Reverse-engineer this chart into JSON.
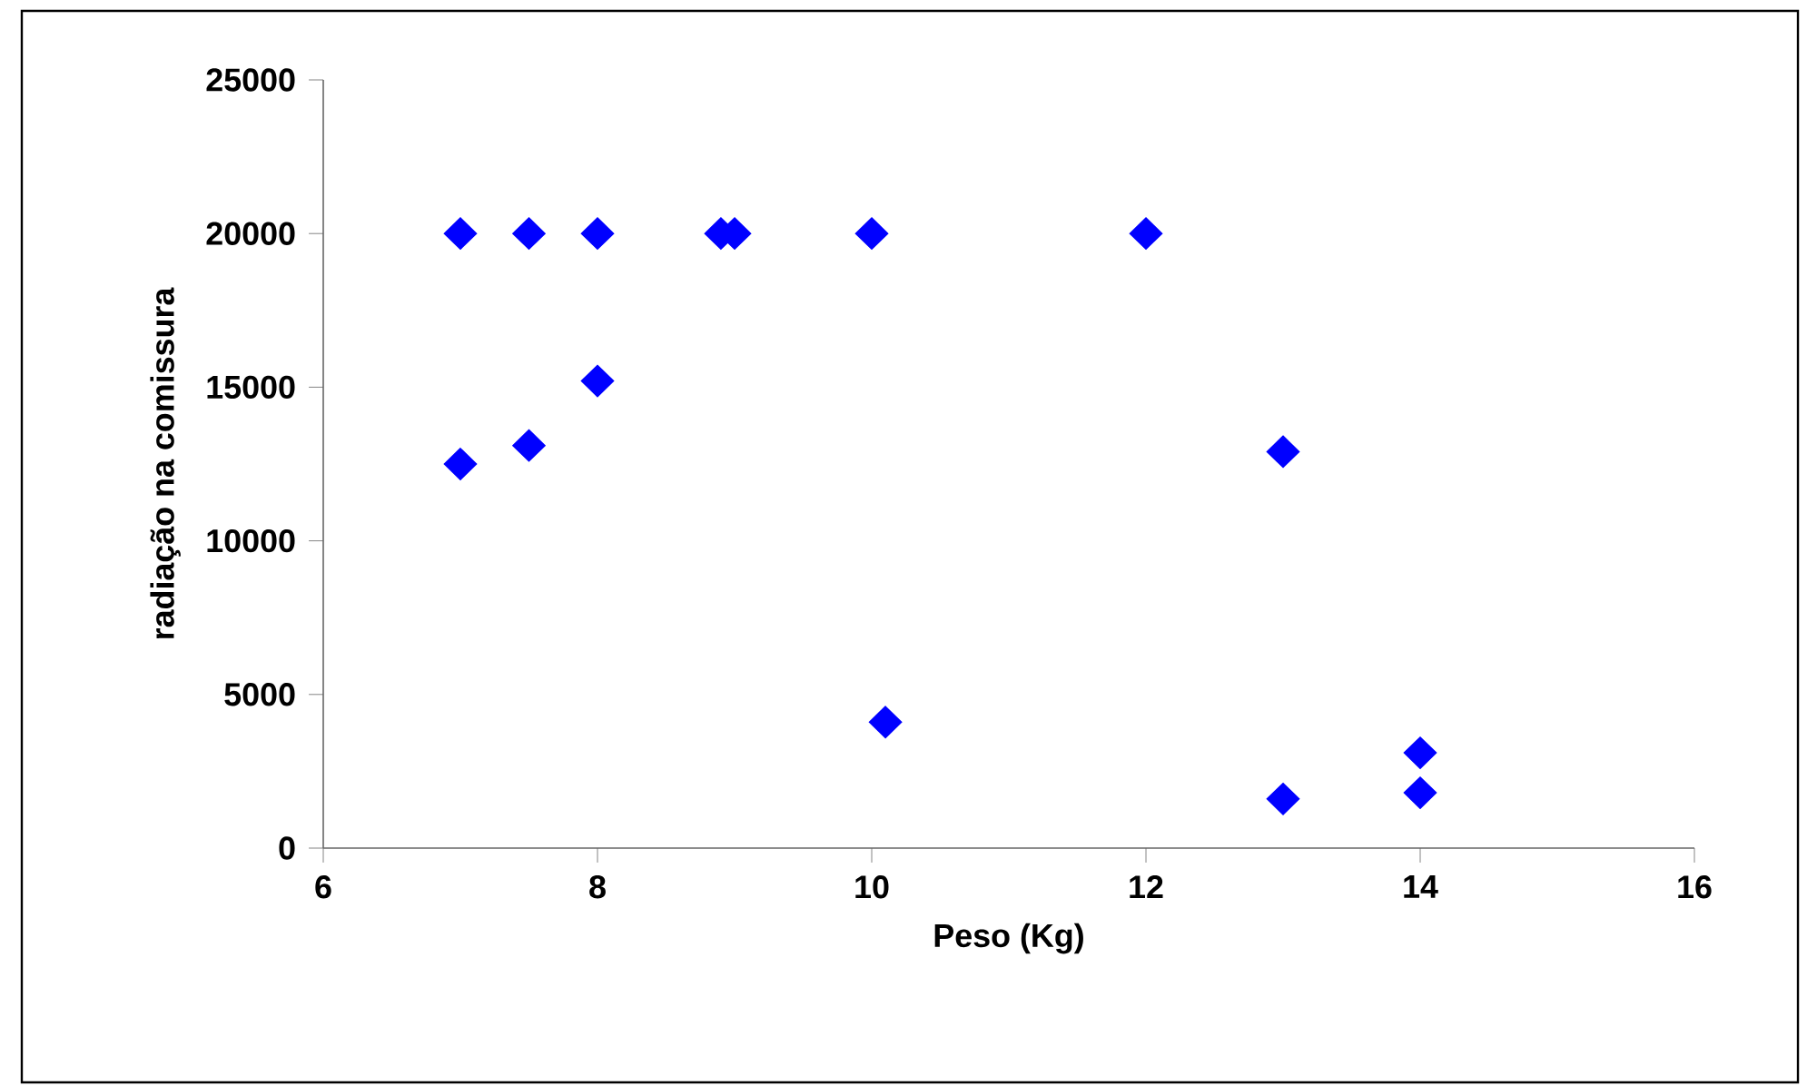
{
  "chart_data": {
    "type": "scatter",
    "xlabel": "Peso (Kg)",
    "ylabel": "radiação na comissura",
    "x": [
      7,
      7.5,
      8,
      8.9,
      9,
      10,
      12,
      8,
      7,
      7.5,
      13,
      10.1,
      13,
      14,
      14
    ],
    "values": [
      20000,
      20000,
      20000,
      20000,
      20000,
      20000,
      20000,
      15200,
      12500,
      13100,
      12900,
      4100,
      1600,
      3100,
      1800
    ],
    "color": "#0000ff",
    "marker": "diamond",
    "xlim": [
      6,
      16
    ],
    "xticks": [
      6,
      8,
      10,
      12,
      14,
      16
    ],
    "ylim": [
      0,
      25000
    ],
    "yticks": [
      0,
      5000,
      10000,
      15000,
      20000,
      25000
    ]
  }
}
